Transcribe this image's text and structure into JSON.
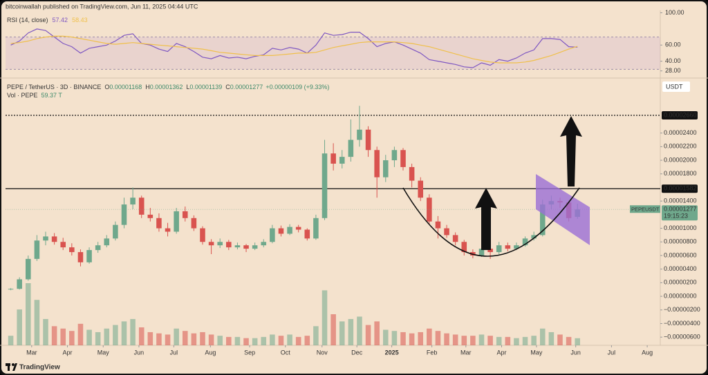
{
  "header": {
    "published": "bitcoinwallah published on TradingView.com, Jun 11, 2025 04:44 UTC"
  },
  "footer": {
    "brand": "TradingView"
  },
  "chart_data": [
    {
      "type": "line",
      "title": "RSI (14, close)",
      "series": [
        {
          "name": "RSI",
          "color": "#7e57c2",
          "values": [
            60,
            65,
            75,
            80,
            78,
            70,
            62,
            58,
            50,
            56,
            58,
            60,
            65,
            72,
            74,
            62,
            60,
            55,
            52,
            62,
            58,
            52,
            45,
            43,
            47,
            44,
            45,
            43,
            46,
            48,
            56,
            54,
            57,
            55,
            50,
            60,
            75,
            72,
            73,
            76,
            76,
            68,
            58,
            62,
            64,
            60,
            55,
            50,
            42,
            40,
            38,
            36,
            33,
            32,
            38,
            35,
            42,
            40,
            44,
            50,
            54,
            68,
            68,
            67,
            58,
            57.42
          ]
        },
        {
          "name": "RSI-based MA",
          "color": "#f0c04a",
          "values": [
            62,
            63,
            65,
            68,
            70,
            71,
            71,
            70,
            68,
            66,
            64,
            62,
            61,
            62,
            63,
            62,
            61,
            60,
            59,
            58,
            57,
            56,
            55,
            53,
            51,
            50,
            49,
            48,
            47,
            47,
            47,
            48,
            49,
            50,
            50,
            51,
            54,
            57,
            59,
            61,
            63,
            64,
            64,
            64,
            64,
            63,
            62,
            60,
            58,
            55,
            52,
            49,
            46,
            43,
            41,
            39,
            38,
            38,
            38,
            39,
            41,
            44,
            47,
            51,
            55,
            58.43
          ]
        }
      ],
      "band": [
        30,
        70
      ],
      "ylim": [
        20,
        103
      ],
      "yticks": [
        {
          "value": 100,
          "label": "100.00"
        },
        {
          "value": 60,
          "label": "60.00"
        },
        {
          "value": 40,
          "label": "40.00"
        },
        {
          "value": 28,
          "label": "28.00"
        }
      ],
      "xlim": [
        -0.6,
        74.5
      ]
    },
    {
      "type": "candlestick",
      "title": "PEPE / TetherUS · 3D · BINANCE",
      "ohlc_legend": [
        {
          "key": "O",
          "value": "0.00001168"
        },
        {
          "key": "H",
          "value": "0.00001362"
        },
        {
          "key": "L",
          "value": "0.00001139"
        },
        {
          "key": "C",
          "value": "0.00001277"
        },
        {
          "key": "",
          "value": "+0.00000109 (+9.33%)"
        }
      ],
      "volume_title": "Vol · PEPE",
      "volume_last_label": "59.37 T",
      "currency": "USDT",
      "up_color": "#6fa88c",
      "down_color": "#d9534f",
      "open": [
        1e-06,
        1.1e-06,
        2.5e-06,
        5.5e-06,
        8.2e-06,
        8.8e-06,
        8e-06,
        7.2e-06,
        6.5e-06,
        5e-06,
        6.8e-06,
        7.5e-06,
        8.5e-06,
        1.05e-05,
        1.35e-05,
        1.45e-05,
        1.2e-05,
        1.15e-05,
        1e-05,
        9.5e-06,
        1.25e-05,
        1.15e-05,
        1e-05,
        8e-06,
        7.5e-06,
        8e-06,
        7.2e-06,
        7.5e-06,
        7e-06,
        7.5e-06,
        8e-06,
        1e-05,
        9.2e-06,
        1.02e-05,
        9.8e-06,
        8.5e-06,
        1.15e-05,
        2.1e-05,
        1.95e-05,
        2.05e-05,
        2.3e-05,
        2.45e-05,
        2.15e-05,
        1.75e-05,
        2e-05,
        2.15e-05,
        1.9e-05,
        1.7e-05,
        1.45e-05,
        1.1e-05,
        1e-05,
        9e-06,
        8e-06,
        6.5e-06,
        6e-06,
        7e-06,
        6.5e-06,
        7.5e-06,
        7e-06,
        7.5e-06,
        8.5e-06,
        9e-06,
        1.35e-05,
        1.4e-05,
        1.38e-05,
        1.168e-05
      ],
      "high": [
        1.2e-06,
        2.8e-06,
        6e-06,
        9e-06,
        9.5e-06,
        9.3e-06,
        8.6e-06,
        7.8e-06,
        6.9e-06,
        7.2e-06,
        8e-06,
        9e-06,
        1.1e-05,
        1.45e-05,
        1.6e-05,
        1.48e-05,
        1.3e-05,
        1.22e-05,
        1.08e-05,
        1.3e-05,
        1.32e-05,
        1.19e-05,
        1.03e-05,
        8.4e-06,
        8.5e-06,
        8.3e-06,
        7.9e-06,
        7.7e-06,
        7.9e-06,
        8.4e-06,
        1.05e-05,
        1.04e-05,
        1.06e-05,
        1.05e-05,
        1e-05,
        1.2e-05,
        2.3e-05,
        2.25e-05,
        2.15e-05,
        2.6e-05,
        2.8e-05,
        2.5e-05,
        2.2e-05,
        2.08e-05,
        2.2e-05,
        2.18e-05,
        1.95e-05,
        1.75e-05,
        1.5e-05,
        1.18e-05,
        1.05e-05,
        9.4e-06,
        8.3e-06,
        6.9e-06,
        7.8e-06,
        7.3e-06,
        8e-06,
        7.9e-06,
        7.9e-06,
        8.8e-06,
        9.5e-06,
        1.42e-05,
        1.48e-05,
        1.45e-05,
        1.4e-05,
        1.362e-05
      ],
      "low": [
        9e-07,
        1e-06,
        2.3e-06,
        5.2e-06,
        7.5e-06,
        7.6e-06,
        6.8e-06,
        6e-06,
        4.4e-06,
        4.8e-06,
        6.4e-06,
        7.2e-06,
        8.2e-06,
        1e-05,
        1.28e-05,
        1.15e-05,
        1.1e-05,
        9.5e-06,
        8.8e-06,
        9.2e-06,
        1.1e-05,
        9.6e-06,
        7.6e-06,
        6.2e-06,
        7.1e-06,
        6.8e-06,
        6.9e-06,
        6.5e-06,
        6.8e-06,
        7.2e-06,
        7.8e-06,
        8.8e-06,
        9e-06,
        9.4e-06,
        8.2e-06,
        8.3e-06,
        1.12e-05,
        1.85e-05,
        1.88e-05,
        1.98e-05,
        2.2e-05,
        2.05e-05,
        1.45e-05,
        1.68e-05,
        1.9e-05,
        1.85e-05,
        1.6e-05,
        1.4e-05,
        1.05e-05,
        8.5e-06,
        8.6e-06,
        7.5e-06,
        6e-06,
        5.6e-06,
        5.8e-06,
        5.5e-06,
        6.2e-06,
        6.6e-06,
        6.8e-06,
        7.3e-06,
        8.2e-06,
        8.8e-06,
        1.28e-05,
        1.3e-05,
        1.1e-05,
        1.139e-05
      ],
      "close": [
        1.1e-06,
        2.5e-06,
        5.5e-06,
        8.2e-06,
        8.8e-06,
        8e-06,
        7.2e-06,
        6.5e-06,
        5e-06,
        6.8e-06,
        7.5e-06,
        8.5e-06,
        1.05e-05,
        1.35e-05,
        1.45e-05,
        1.2e-05,
        1.15e-05,
        1e-05,
        9.5e-06,
        1.25e-05,
        1.15e-05,
        1e-05,
        8e-06,
        7.5e-06,
        8e-06,
        7.2e-06,
        7.5e-06,
        7e-06,
        7.5e-06,
        8e-06,
        1e-05,
        9.2e-06,
        1.02e-05,
        9.8e-06,
        8.5e-06,
        1.15e-05,
        2.1e-05,
        1.95e-05,
        2.05e-05,
        2.3e-05,
        2.45e-05,
        2.15e-05,
        1.75e-05,
        2e-05,
        2.15e-05,
        1.9e-05,
        1.7e-05,
        1.45e-05,
        1.1e-05,
        1e-05,
        9e-06,
        8e-06,
        6.5e-06,
        6e-06,
        7e-06,
        6.5e-06,
        7.5e-06,
        7e-06,
        7.5e-06,
        8.5e-06,
        9e-06,
        1.35e-05,
        1.4e-05,
        1.38e-05,
        1.15e-05,
        1.277e-05
      ],
      "volume": [
        80,
        300,
        520,
        380,
        220,
        160,
        140,
        120,
        180,
        130,
        110,
        140,
        170,
        200,
        220,
        150,
        110,
        100,
        90,
        140,
        120,
        100,
        110,
        90,
        80,
        70,
        70,
        60,
        60,
        70,
        90,
        80,
        90,
        70,
        80,
        160,
        460,
        260,
        200,
        220,
        240,
        170,
        200,
        130,
        120,
        110,
        100,
        110,
        140,
        120,
        100,
        90,
        80,
        80,
        90,
        80,
        70,
        70,
        60,
        70,
        80,
        140,
        110,
        90,
        70,
        59.37
      ],
      "levels": [
        {
          "value": 2.66e-05,
          "label": "0.00002660",
          "style": "dotted"
        },
        {
          "value": 1.582e-05,
          "label": "0.00001582",
          "style": "solid"
        }
      ],
      "last_price": {
        "symbol": "PEPEUSDT",
        "label": "0.00001277",
        "countdown": "19:15:23"
      },
      "ylim": [
        -7.2e-06,
        3.107e-05
      ],
      "yticks": [
        {
          "value": 2.4e-05,
          "label": "0.00002400"
        },
        {
          "value": 2.2e-05,
          "label": "0.00002200"
        },
        {
          "value": 2e-05,
          "label": "0.00002000"
        },
        {
          "value": 1.8e-05,
          "label": "0.00001800"
        },
        {
          "value": 1.4e-05,
          "label": "0.00001400"
        },
        {
          "value": 1e-05,
          "label": "0.00001000"
        },
        {
          "value": 8e-06,
          "label": "0.00000800"
        },
        {
          "value": 6e-06,
          "label": "0.00000600"
        },
        {
          "value": 4e-06,
          "label": "0.00000400"
        },
        {
          "value": 2e-06,
          "label": "0.00000200"
        },
        {
          "value": 0,
          "label": "0.00000000"
        },
        {
          "value": -2e-06,
          "label": "−0.00000200"
        },
        {
          "value": -4e-06,
          "label": "−0.00000400"
        },
        {
          "value": -6e-06,
          "label": "−0.00000600"
        }
      ],
      "xlim": [
        -0.6,
        74.5
      ],
      "xticks": [
        {
          "value": 2.4,
          "label": "Mar"
        },
        {
          "value": 6.5,
          "label": "Apr"
        },
        {
          "value": 10.6,
          "label": "May"
        },
        {
          "value": 14.7,
          "label": "Jun"
        },
        {
          "value": 18.7,
          "label": "Jul"
        },
        {
          "value": 22.9,
          "label": "Aug"
        },
        {
          "value": 27.4,
          "label": "Sep"
        },
        {
          "value": 31.5,
          "label": "Oct"
        },
        {
          "value": 35.7,
          "label": "Nov"
        },
        {
          "value": 39.7,
          "label": "Dec"
        },
        {
          "value": 43.7,
          "label": "2025"
        },
        {
          "value": 48.3,
          "label": "Feb"
        },
        {
          "value": 52.2,
          "label": "Mar"
        },
        {
          "value": 56.3,
          "label": "Apr"
        },
        {
          "value": 60.3,
          "label": "May"
        },
        {
          "value": 64.8,
          "label": "Jun"
        },
        {
          "value": 68.9,
          "label": "Jul"
        },
        {
          "value": 73,
          "label": "Aug"
        }
      ]
    }
  ]
}
